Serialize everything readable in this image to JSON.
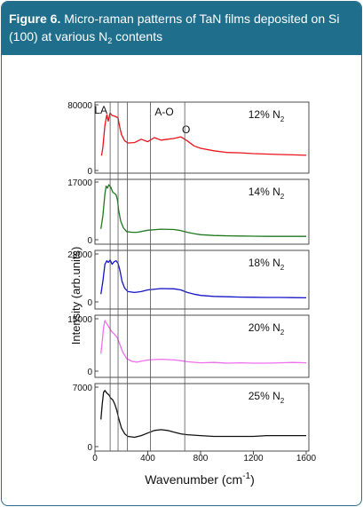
{
  "caption": {
    "label": "Figure 6.",
    "text_before": " Micro-raman patterns of TaN films deposited on Si (100) at various N",
    "sub": "2",
    "text_after": " contents"
  },
  "chart_data": {
    "type": "line",
    "xlabel_main": "Wavenumber (cm",
    "xlabel_sup": "-1",
    "xlabel_close": ")",
    "ylabel": "Intensity (arb.units)",
    "xlim": [
      0,
      1650
    ],
    "xticks": [
      "0",
      "400",
      "800",
      "1200",
      "1600"
    ],
    "xtick_values": [
      0,
      400,
      800,
      1200,
      1600
    ],
    "vertical_lines_x": [
      115,
      175,
      245,
      420,
      680
    ],
    "peak_labels": [
      {
        "text": "LA",
        "x": 45
      },
      {
        "text": "A-O",
        "x": 525
      },
      {
        "text": "O",
        "x": 690
      }
    ],
    "panels": [
      {
        "label_main": "12% N",
        "label_sub": "2",
        "ymax_label": "80000",
        "ymin_label": "0",
        "ylim": [
          0,
          80000
        ],
        "color": "#e8141a",
        "x": [
          50,
          60,
          75,
          90,
          100,
          115,
          130,
          150,
          165,
          175,
          185,
          200,
          225,
          250,
          300,
          350,
          400,
          450,
          500,
          550,
          600,
          650,
          700,
          750,
          800,
          900,
          1000,
          1100,
          1200,
          1300,
          1400,
          1500,
          1600
        ],
        "y": [
          18000,
          28000,
          55000,
          68000,
          60000,
          70000,
          67000,
          66000,
          65000,
          64000,
          55000,
          44000,
          36000,
          33500,
          34000,
          38000,
          35000,
          40000,
          37000,
          38000,
          39000,
          41000,
          36000,
          30000,
          27000,
          24000,
          22000,
          21500,
          20500,
          20000,
          19500,
          19000,
          18500
        ]
      },
      {
        "label_main": "14% N",
        "label_sub": "2",
        "ymax_label": "17000",
        "ymin_label": "0",
        "ylim": [
          0,
          17000
        ],
        "color": "#1e7a1e",
        "x": [
          45,
          60,
          75,
          85,
          95,
          105,
          120,
          135,
          150,
          160,
          170,
          180,
          195,
          215,
          240,
          280,
          320,
          400,
          500,
          600,
          650,
          700,
          750,
          800,
          900,
          1000,
          1100,
          1200,
          1300,
          1400,
          1500,
          1600
        ],
        "y": [
          3200,
          7000,
          13500,
          15800,
          15200,
          16200,
          15500,
          14000,
          13600,
          13200,
          11800,
          8500,
          5500,
          3500,
          2400,
          2200,
          2200,
          2800,
          3100,
          3000,
          2700,
          2200,
          1800,
          1500,
          1250,
          1150,
          1100,
          1050,
          1000,
          1000,
          1000,
          1000
        ]
      },
      {
        "label_main": "18% N",
        "label_sub": "2",
        "ymax_label": "28000",
        "ymin_label": "0",
        "ylim": [
          0,
          28000
        ],
        "color": "#1414c8",
        "x": [
          45,
          60,
          75,
          90,
          100,
          115,
          130,
          145,
          160,
          175,
          190,
          205,
          225,
          250,
          300,
          350,
          400,
          500,
          600,
          650,
          700,
          750,
          800,
          900,
          1000,
          1100,
          1200,
          1300,
          1400,
          1500,
          1600
        ],
        "y": [
          4500,
          12000,
          22000,
          24000,
          23000,
          24500,
          22000,
          23500,
          24000,
          22500,
          18000,
          12000,
          8000,
          6000,
          5500,
          6000,
          7000,
          7800,
          7600,
          7000,
          5500,
          4500,
          3800,
          3200,
          3000,
          2800,
          2700,
          2600,
          2600,
          2500,
          2400
        ]
      },
      {
        "label_main": "20% N",
        "label_sub": "2",
        "ymax_label": "15000",
        "ymin_label": "0",
        "ylim": [
          0,
          15000
        ],
        "color": "#f06ef0",
        "x": [
          45,
          55,
          65,
          75,
          90,
          100,
          115,
          130,
          150,
          170,
          190,
          210,
          240,
          280,
          320,
          400,
          500,
          600,
          650,
          700,
          800,
          900,
          1000,
          1100,
          1200,
          1300,
          1400,
          1500,
          1600
        ],
        "y": [
          5000,
          8500,
          12500,
          14500,
          13500,
          13000,
          12000,
          11200,
          10500,
          9500,
          7500,
          5500,
          3600,
          2800,
          2600,
          3200,
          3400,
          3200,
          3000,
          2700,
          2400,
          2500,
          2300,
          2400,
          2300,
          2300,
          2400,
          2500,
          2400
        ]
      },
      {
        "label_main": "25% N",
        "label_sub": "2",
        "ymax_label": "7000",
        "ymin_label": "0",
        "ylim": [
          0,
          7000
        ],
        "color": "#111111",
        "x": [
          45,
          55,
          65,
          75,
          90,
          105,
          120,
          135,
          150,
          165,
          180,
          200,
          225,
          250,
          300,
          350,
          400,
          450,
          500,
          550,
          600,
          650,
          700,
          800,
          900,
          1000,
          1100,
          1200,
          1300,
          1400,
          1500,
          1600
        ],
        "y": [
          3200,
          5000,
          6400,
          6600,
          6300,
          6100,
          5700,
          5500,
          5000,
          4300,
          3300,
          2200,
          1500,
          1200,
          1100,
          1300,
          1600,
          1900,
          2000,
          1900,
          1700,
          1500,
          1400,
          1300,
          1200,
          1200,
          1200,
          1200,
          1300,
          1300,
          1300,
          1300
        ]
      }
    ]
  }
}
